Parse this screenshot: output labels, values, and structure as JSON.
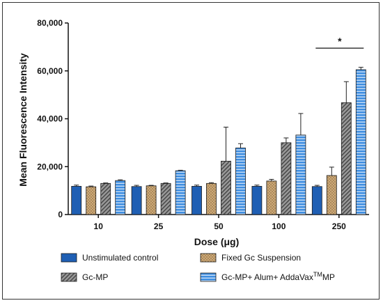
{
  "chart_data": {
    "type": "bar",
    "xlabel": "Dose (μg)",
    "ylabel": "Mean Fluorescence Intensity",
    "ylim": [
      0,
      80000
    ],
    "yticks": [
      "0",
      "20,000",
      "40,000",
      "60,000",
      "80,000"
    ],
    "yticks_values": [
      0,
      20000,
      40000,
      60000,
      80000
    ],
    "categories": [
      "10",
      "25",
      "50",
      "100",
      "250"
    ],
    "series": [
      {
        "name": "Unstimulated control",
        "color": "#1f5fb4",
        "pattern": "solid",
        "values": [
          11800,
          11700,
          11800,
          11800,
          11700
        ],
        "errors": [
          500,
          500,
          500,
          500,
          500
        ]
      },
      {
        "name": "Fixed Gc Suspension",
        "color": "#c8a87a",
        "pattern": "dots",
        "values": [
          11600,
          12000,
          13000,
          14000,
          16300
        ],
        "errors": [
          300,
          200,
          300,
          700,
          3500
        ]
      },
      {
        "name": "Gc-MP",
        "color": "#8a8a8a",
        "pattern": "diagonal",
        "values": [
          13000,
          13000,
          22300,
          30000,
          46700
        ],
        "errors": [
          200,
          200,
          14200,
          2000,
          8800
        ]
      },
      {
        "name_parts": [
          "Gc-MP+ Alum+ AddaVax",
          "TM",
          "MP"
        ],
        "color": "#3d8de0",
        "pattern": "horizontal",
        "values": [
          14200,
          18300,
          27800,
          33200,
          60500
        ],
        "errors": [
          300,
          200,
          1800,
          9000,
          1000
        ]
      }
    ],
    "annotations": [
      {
        "text": "*",
        "category": "250"
      }
    ]
  }
}
